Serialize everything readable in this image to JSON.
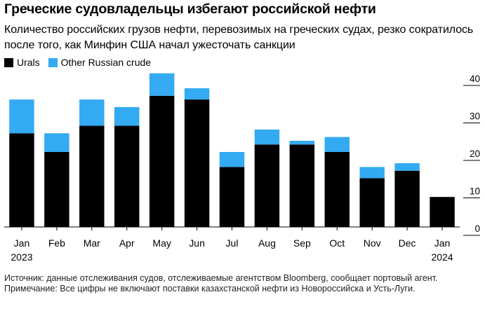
{
  "title": "Греческие судовладельцы избегают российской нефти",
  "subtitle": "Количество российских грузов нефти, перевозимых на греческих судах, резко сократилось после того, как Минфин США начал ужесточать санкции",
  "colors": {
    "urals": "#000000",
    "other": "#33aaf2",
    "axis": "#000000"
  },
  "chart_data": {
    "type": "bar",
    "stacked": true,
    "categories": [
      "Jan",
      "Feb",
      "Mar",
      "Apr",
      "May",
      "Jun",
      "Jul",
      "Aug",
      "Sep",
      "Oct",
      "Nov",
      "Dec",
      "Jan"
    ],
    "category_sublabels": [
      "2023",
      "",
      "",
      "",
      "",
      "",
      "",
      "",
      "",
      "",
      "",
      "",
      "2024"
    ],
    "series": [
      {
        "name": "Urals",
        "values": [
          25,
          20,
          27,
          27,
          35,
          34,
          16,
          22,
          22,
          20,
          13,
          15,
          8
        ]
      },
      {
        "name": "Other Russian crude",
        "values": [
          9,
          5,
          7,
          5,
          6,
          3,
          4,
          4,
          1,
          4,
          3,
          2,
          0
        ]
      }
    ],
    "ylim": [
      0,
      40
    ],
    "yticks": [
      "40",
      "30",
      "20",
      "10",
      "0"
    ],
    "xlabel": "",
    "ylabel": "",
    "legend": "top-left"
  },
  "footer": {
    "source": "Источник: данные отслеживания судов, отслеживаемые агентством Bloomberg, сообщает портовый агент.",
    "note": "Примечание: Все цифры не включают поставки казахстанской нефти из Новороссийска и Усть-Луги."
  }
}
